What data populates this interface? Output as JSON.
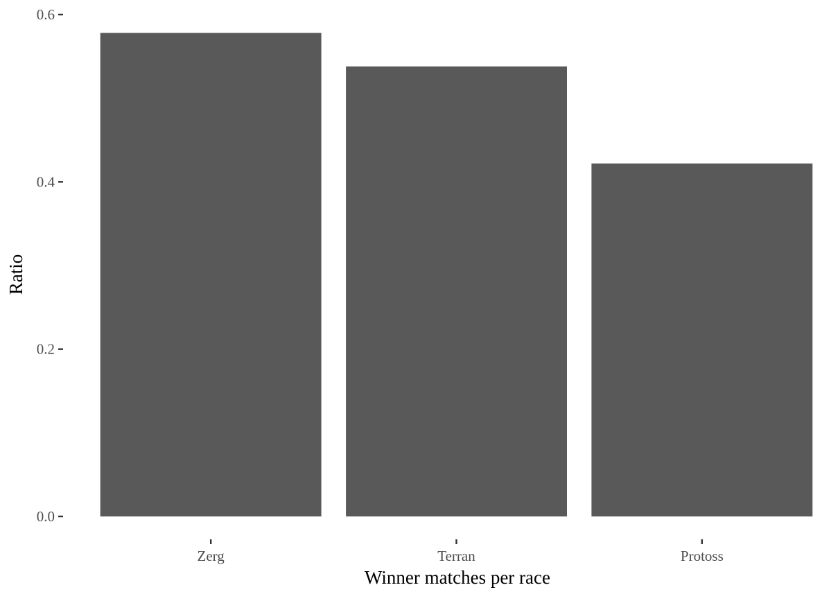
{
  "chart_data": {
    "type": "bar",
    "title": "",
    "xlabel": "Winner matches per race",
    "ylabel": "Ratio",
    "categories": [
      "Zerg",
      "Terran",
      "Protoss"
    ],
    "values": [
      0.578,
      0.538,
      0.422
    ],
    "ylim": [
      0.0,
      0.6
    ],
    "yticks": [
      "0.0",
      "0.2",
      "0.4",
      "0.6"
    ],
    "ytick_values": [
      0.0,
      0.2,
      0.4,
      0.6
    ],
    "grid": false,
    "legend": "none",
    "colors": {
      "bar": "#595959",
      "background": "#ffffff"
    }
  }
}
